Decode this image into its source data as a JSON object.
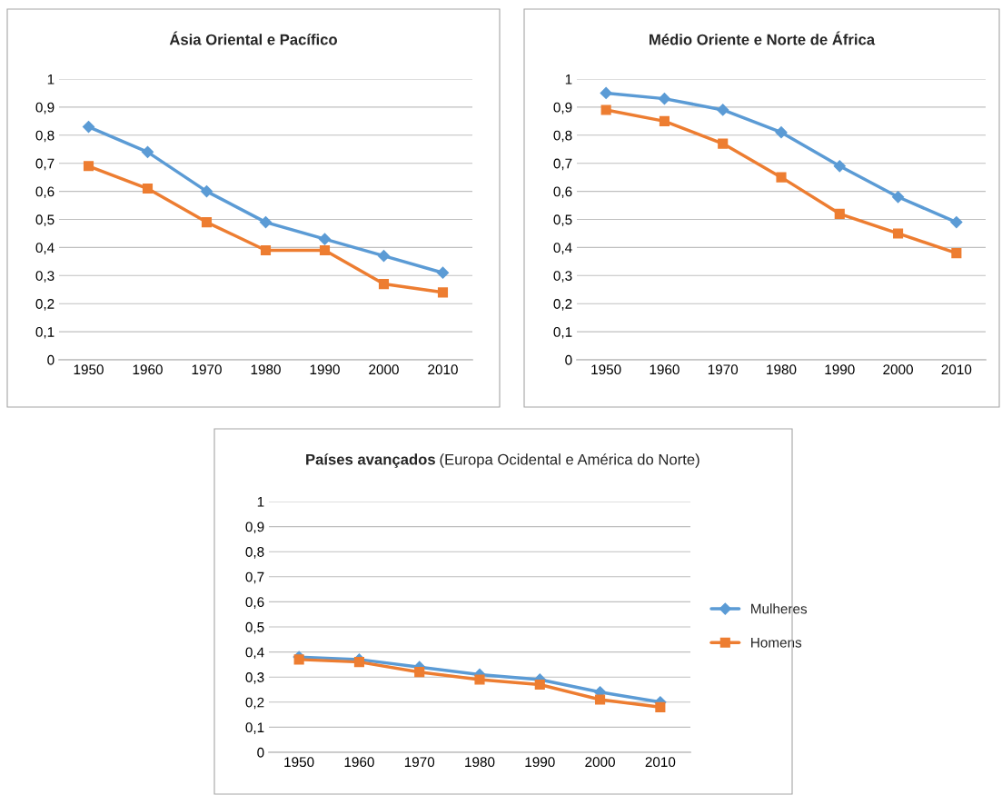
{
  "chart_data": [
    {
      "type": "line",
      "title": "Ásia Oriental e Pacífico",
      "categories": [
        "1950",
        "1960",
        "1970",
        "1980",
        "1990",
        "2000",
        "2010"
      ],
      "ylim": [
        0,
        1
      ],
      "yticks": [
        0,
        {
          "value": 0.1,
          "label": "0,1"
        },
        {
          "value": 0.2,
          "label": "0,2"
        },
        {
          "value": 0.3,
          "label": "0,3"
        },
        {
          "value": 0.4,
          "label": "0,4"
        },
        {
          "value": 0.5,
          "label": "0,5"
        },
        {
          "value": 0.6,
          "label": "0,6"
        },
        {
          "value": 0.7,
          "label": "0,7"
        },
        {
          "value": 0.8,
          "label": "0,8"
        },
        {
          "value": 0.9,
          "label": "0,9"
        },
        1
      ],
      "grid": "y",
      "line_style": "solid",
      "series": [
        {
          "color": "#5b9bd5",
          "marker": "diamond",
          "values": [
            0.83,
            0.74,
            0.6,
            0.49,
            0.43,
            0.37,
            0.31
          ]
        },
        {
          "color": "#ed7d31",
          "marker": "square",
          "values": [
            0.69,
            0.61,
            0.49,
            0.39,
            0.39,
            0.27,
            0.24
          ]
        }
      ]
    },
    {
      "type": "line",
      "title": "Médio Oriente e Norte de África",
      "categories": [
        "1950",
        "1960",
        "1970",
        "1980",
        "1990",
        "2000",
        "2010"
      ],
      "ylim": [
        0,
        1
      ],
      "yticks": [
        0,
        {
          "value": 0.1,
          "label": "0,1"
        },
        {
          "value": 0.2,
          "label": "0,2"
        },
        {
          "value": 0.3,
          "label": "0,3"
        },
        {
          "value": 0.4,
          "label": "0,4"
        },
        {
          "value": 0.5,
          "label": "0,5"
        },
        {
          "value": 0.6,
          "label": "0,6"
        },
        {
          "value": 0.7,
          "label": "0,7"
        },
        {
          "value": 0.8,
          "label": "0,8"
        },
        {
          "value": 0.9,
          "label": "0,9"
        },
        1
      ],
      "grid": "y",
      "line_style": "solid",
      "series": [
        {
          "color": "#5b9bd5",
          "marker": "diamond",
          "values": [
            0.95,
            0.93,
            0.89,
            0.81,
            0.69,
            0.58,
            0.49
          ]
        },
        {
          "color": "#ed7d31",
          "marker": "square",
          "values": [
            0.89,
            0.85,
            0.77,
            0.65,
            0.52,
            0.45,
            0.38
          ]
        }
      ]
    },
    {
      "type": "line",
      "title": "Países avançados",
      "subtitle": "(Europa Ocidental e América do Norte)",
      "categories": [
        "1950",
        "1960",
        "1970",
        "1980",
        "1990",
        "2000",
        "2010"
      ],
      "ylim": [
        0,
        1
      ],
      "yticks": [
        0,
        {
          "value": 0.1,
          "label": "0,1"
        },
        {
          "value": 0.2,
          "label": "0,2"
        },
        {
          "value": 0.3,
          "label": "0,3"
        },
        {
          "value": 0.4,
          "label": "0,4"
        },
        {
          "value": 0.5,
          "label": "0,5"
        },
        {
          "value": 0.6,
          "label": "0,6"
        },
        {
          "value": 0.7,
          "label": "0,7"
        },
        {
          "value": 0.8,
          "label": "0,8"
        },
        {
          "value": 0.9,
          "label": "0,9"
        },
        1
      ],
      "grid": "y",
      "line_style": "solid",
      "legend": "right",
      "series": [
        {
          "name": "Mulheres",
          "color": "#5b9bd5",
          "marker": "diamond",
          "values": [
            0.38,
            0.37,
            0.34,
            0.31,
            0.29,
            0.24,
            0.2
          ]
        },
        {
          "name": "Homens",
          "color": "#ed7d31",
          "marker": "square",
          "values": [
            0.37,
            0.36,
            0.32,
            0.29,
            0.27,
            0.21,
            0.18
          ]
        }
      ]
    }
  ]
}
